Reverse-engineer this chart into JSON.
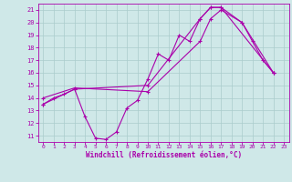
{
  "xlabel": "Windchill (Refroidissement éolien,°C)",
  "xlim": [
    -0.5,
    23.5
  ],
  "ylim": [
    10.5,
    21.5
  ],
  "yticks": [
    11,
    12,
    13,
    14,
    15,
    16,
    17,
    18,
    19,
    20,
    21
  ],
  "xticks": [
    0,
    1,
    2,
    3,
    4,
    5,
    6,
    7,
    8,
    9,
    10,
    11,
    12,
    13,
    14,
    15,
    16,
    17,
    18,
    19,
    20,
    21,
    22,
    23
  ],
  "bg_color": "#cfe8e8",
  "grid_color": "#aacccc",
  "line_color": "#aa00aa",
  "line1_x": [
    0,
    1,
    2,
    3,
    4,
    5,
    6,
    7,
    8,
    9,
    10,
    11,
    12,
    13,
    14,
    15,
    16,
    17,
    19,
    20,
    21,
    22
  ],
  "line1_y": [
    13.5,
    14.0,
    14.3,
    14.7,
    12.5,
    10.8,
    10.7,
    11.3,
    13.2,
    13.8,
    15.5,
    17.5,
    17.0,
    19.0,
    18.5,
    20.3,
    21.2,
    21.2,
    20.0,
    18.5,
    17.0,
    16.0
  ],
  "line2_x": [
    0,
    3,
    10,
    15,
    16,
    17,
    22
  ],
  "line2_y": [
    13.5,
    14.7,
    15.0,
    20.3,
    21.2,
    21.2,
    16.0
  ],
  "line3_x": [
    0,
    3,
    10,
    15,
    16,
    17,
    19,
    22
  ],
  "line3_y": [
    14.0,
    14.8,
    14.5,
    18.5,
    20.3,
    21.0,
    20.0,
    16.0
  ],
  "marker": "+",
  "markersize": 3,
  "linewidth": 0.8
}
